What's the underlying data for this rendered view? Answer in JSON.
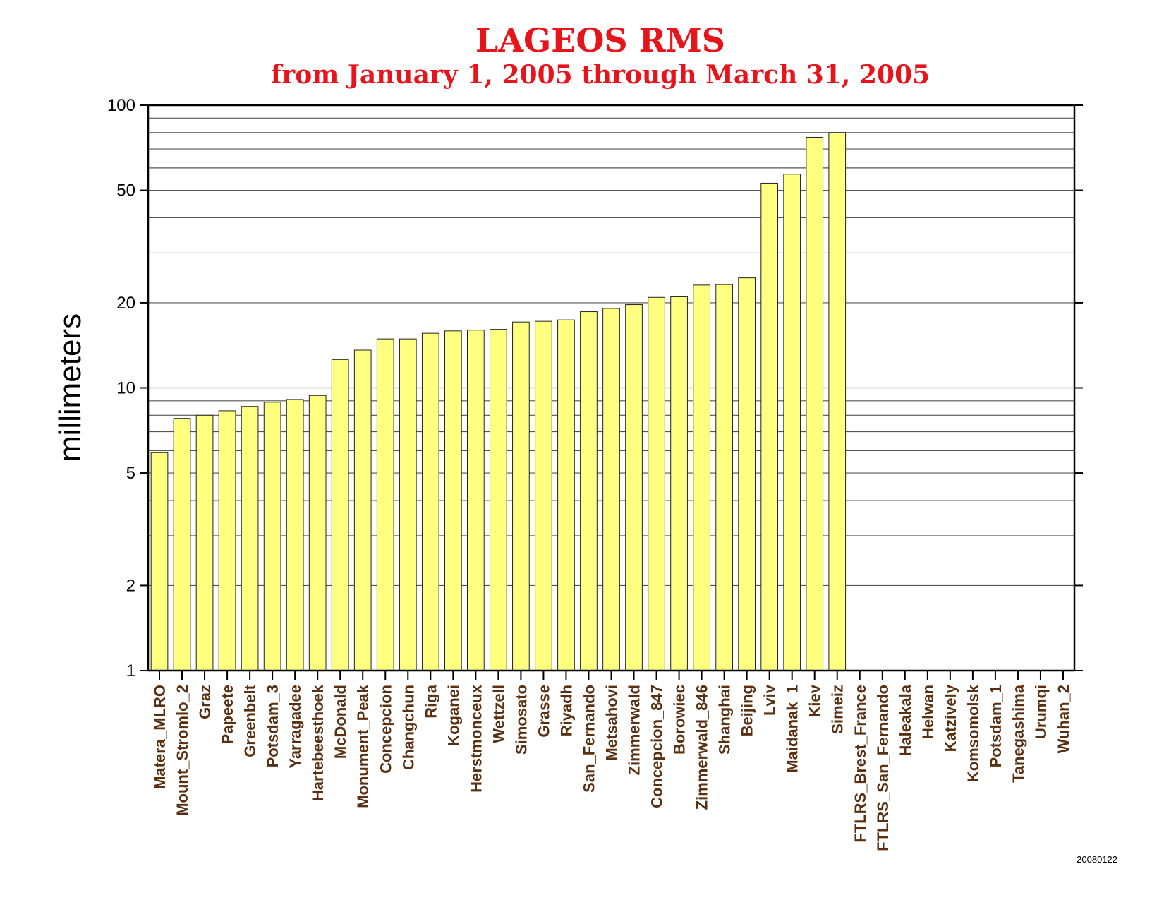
{
  "chart_data": {
    "type": "bar",
    "title": "LAGEOS RMS",
    "subtitle": "from January 1, 2005 through March 31, 2005",
    "ylabel": "millimeters",
    "xlabel": "",
    "yscale": "log",
    "ylim": [
      1,
      100
    ],
    "yticks": [
      1,
      2,
      5,
      10,
      20,
      50,
      100
    ],
    "ytick_labels": [
      "1",
      "2",
      "5",
      "10",
      "20",
      "50",
      "100"
    ],
    "grid": true,
    "bar_color": "#ffff80",
    "title_color": "#e8141c",
    "label_color": "#5a3010",
    "categories": [
      "Matera_MLRO",
      "Mount_Stromlo_2",
      "Graz",
      "Papeete",
      "Greenbelt",
      "Potsdam_3",
      "Yarragadee",
      "Hartebeesthoek",
      "McDonald",
      "Monument_Peak",
      "Concepcion",
      "Changchun",
      "Riga",
      "Koganei",
      "Herstmonceux",
      "Wettzell",
      "Simosato",
      "Grasse",
      "Riyadh",
      "San_Fernando",
      "Metsahovi",
      "Zimmerwald",
      "Concepcion_847",
      "Borowiec",
      "Zimmerwald_846",
      "Shanghai",
      "Beijing",
      "Lviv",
      "Maidanak_1",
      "Kiev",
      "Simeiz",
      "FTLRS_Brest_France",
      "FTLRS_San_Fernando",
      "Haleakala",
      "Helwan",
      "Katzively",
      "Komsomolsk",
      "Potsdam_1",
      "Tanegashima",
      "Urumqi",
      "Wuhan_2"
    ],
    "values": [
      5.9,
      7.8,
      8.0,
      8.3,
      8.6,
      8.9,
      9.1,
      9.4,
      12.6,
      13.6,
      14.9,
      14.9,
      15.6,
      15.9,
      16.0,
      16.1,
      17.1,
      17.2,
      17.4,
      18.6,
      19.1,
      19.7,
      20.9,
      21.0,
      23.1,
      23.2,
      24.5,
      53.0,
      57.0,
      77.0,
      80.0,
      null,
      null,
      null,
      null,
      null,
      null,
      null,
      null,
      null,
      null
    ]
  },
  "footer": {
    "stamp": "20080122"
  }
}
